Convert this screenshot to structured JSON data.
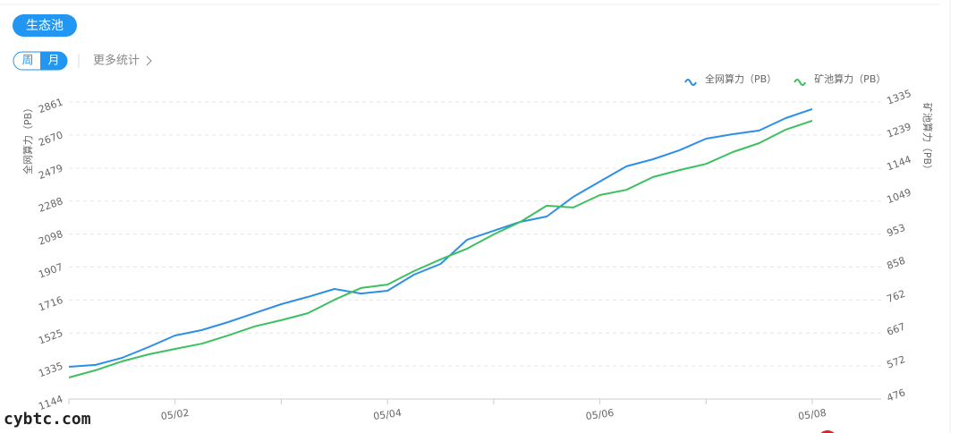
{
  "header": {
    "button": "生态池",
    "tabs": [
      "周",
      "月"
    ],
    "active_tab": 1,
    "more": "更多统计"
  },
  "watermark": "cybtc.com",
  "chart_data": {
    "type": "line",
    "ylabel": "全网算力（PB）",
    "y2label": "矿池算力（PB）",
    "categories": [
      null,
      null,
      null,
      null,
      "05/02",
      null,
      null,
      null,
      null,
      null,
      null,
      null,
      "05/04",
      null,
      null,
      null,
      null,
      null,
      null,
      null,
      "05/06",
      null,
      null,
      null,
      null,
      null,
      null,
      null,
      "05/08"
    ],
    "series": [
      {
        "name": "全网算力（PB）",
        "color": "#2d8fe6",
        "values": [
          1330,
          1341,
          1382,
          1444,
          1511,
          1542,
          1589,
          1641,
          1692,
          1734,
          1780,
          1754,
          1770,
          1863,
          1925,
          2065,
          2117,
          2168,
          2199,
          2313,
          2401,
          2489,
          2530,
          2582,
          2649,
          2675,
          2696,
          2768,
          2820
        ]
      },
      {
        "name": "矿池算力（PB）",
        "color": "#3cc060",
        "axis": "y2",
        "values": [
          538,
          559,
          585,
          605,
          621,
          636,
          660,
          686,
          704,
          724,
          763,
          797,
          807,
          846,
          880,
          911,
          952,
          988,
          1035,
          1030,
          1066,
          1081,
          1118,
          1138,
          1156,
          1190,
          1216,
          1255,
          1281
        ]
      }
    ],
    "ylim": [
      1144,
      2861
    ],
    "yticks": [
      1144,
      1335,
      1525,
      1716,
      1907,
      2098,
      2288,
      2479,
      2670,
      2861
    ],
    "y2lim": [
      476,
      1335
    ],
    "y2ticks": [
      476,
      572,
      667,
      762,
      858,
      953,
      1049,
      1144,
      1239,
      1335
    ],
    "grid": true,
    "legend": "top-right"
  }
}
